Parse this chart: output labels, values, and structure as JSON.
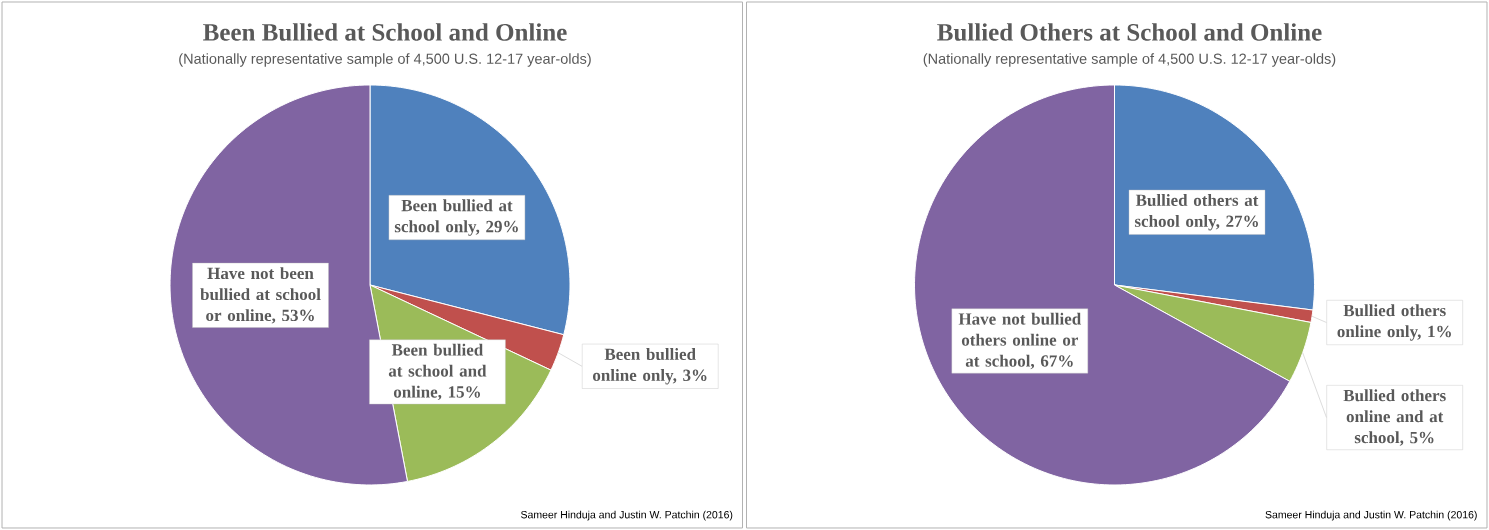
{
  "chart_data": [
    {
      "type": "pie",
      "title": "Been Bullied at School and Online",
      "subtitle": "(Nationally representative sample of 4,500 U.S. 12-17 year-olds)",
      "categories": [
        "Been bullied at school only, 29%",
        "Been bullied online only, 3%",
        "Been bullied at school and online, 15%",
        "Have not been bullied at school or online, 53%"
      ],
      "values": [
        29,
        3,
        15,
        53
      ],
      "colors": [
        "#4f81bd",
        "#c0504d",
        "#9bbb59",
        "#8064a2"
      ],
      "annotations": [
        "Sameer Hinduja and Justin W. Patchin (2016)"
      ]
    },
    {
      "type": "pie",
      "title": "Bullied Others at School and Online",
      "subtitle": "(Nationally representative sample of 4,500 U.S. 12-17 year-olds)",
      "categories": [
        "Bullied others at school only, 27%",
        "Bullied others online only, 1%",
        "Bullied others online and at school, 5%",
        "Have not bullied others online or at school, 67%"
      ],
      "values": [
        27,
        1,
        5,
        67
      ],
      "colors": [
        "#4f81bd",
        "#c0504d",
        "#9bbb59",
        "#8064a2"
      ],
      "annotations": [
        "Sameer Hinduja and Justin W. Patchin (2016)"
      ]
    }
  ]
}
